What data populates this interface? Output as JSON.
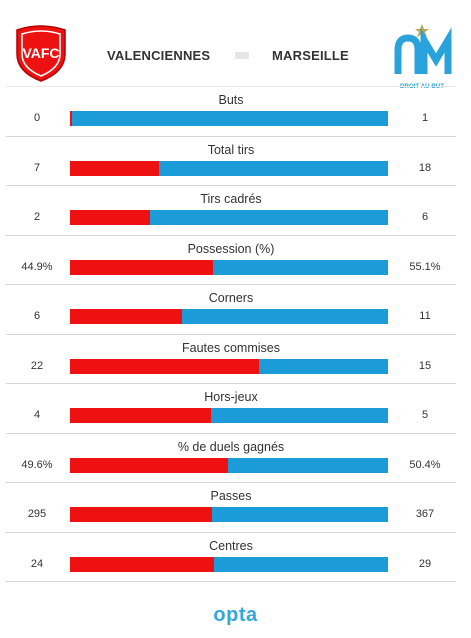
{
  "match": {
    "home_team": "VALENCIENNES",
    "away_team": "MARSEILLE",
    "home_logo_text": "VAFC",
    "away_logo_text": "DROIT AU BUT"
  },
  "colors": {
    "home": "#ee1111",
    "away": "#1c9bd9",
    "brand": "#33a8dc"
  },
  "stats": [
    {
      "label": "Buts",
      "home": "0",
      "away": "1",
      "home_share": 0.005
    },
    {
      "label": "Total tirs",
      "home": "7",
      "away": "18",
      "home_share": 0.28
    },
    {
      "label": "Tirs cadrés",
      "home": "2",
      "away": "6",
      "home_share": 0.25
    },
    {
      "label": "Possession (%)",
      "home": "44.9%",
      "away": "55.1%",
      "home_share": 0.449
    },
    {
      "label": "Corners",
      "home": "6",
      "away": "11",
      "home_share": 0.353
    },
    {
      "label": "Fautes commises",
      "home": "22",
      "away": "15",
      "home_share": 0.595
    },
    {
      "label": "Hors-jeux",
      "home": "4",
      "away": "5",
      "home_share": 0.444
    },
    {
      "label": "% de duels gagnés",
      "home": "49.6%",
      "away": "50.4%",
      "home_share": 0.496
    },
    {
      "label": "Passes",
      "home": "295",
      "away": "367",
      "home_share": 0.446
    },
    {
      "label": "Centres",
      "home": "24",
      "away": "29",
      "home_share": 0.453
    }
  ],
  "footer": {
    "brand": "opta"
  }
}
